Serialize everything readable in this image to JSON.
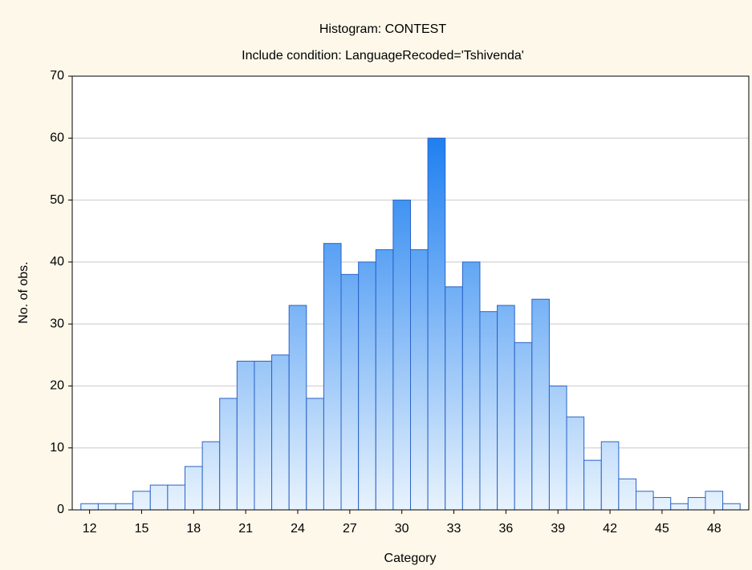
{
  "chart_data": {
    "type": "histogram",
    "title": "Histogram: CONTEST",
    "subtitle": "Include condition: LanguageRecoded='Tshivenda'",
    "x_label": "Category",
    "y_label": "No. of obs.",
    "bins": [
      11.5,
      12.5,
      13.5,
      14.5,
      15.5,
      16.5,
      17.5,
      18.5,
      19.5,
      20.5,
      21.5,
      22.5,
      23.5,
      24.5,
      25.5,
      26.5,
      27.5,
      28.5,
      29.5,
      30.5,
      31.5,
      32.5,
      33.5,
      34.5,
      35.5,
      36.5,
      37.5,
      38.5,
      39.5,
      40.5,
      41.5,
      42.5,
      43.5,
      44.5,
      45.5,
      46.5,
      47.5,
      48.5,
      49.5
    ],
    "values": [
      1,
      1,
      1,
      3,
      4,
      4,
      7,
      11,
      18,
      24,
      24,
      25,
      33,
      18,
      43,
      38,
      40,
      42,
      50,
      42,
      60,
      36,
      40,
      32,
      33,
      27,
      34,
      20,
      15,
      8,
      11,
      5,
      3,
      2,
      1,
      2,
      3,
      1
    ],
    "color": "#2a63c7",
    "xlim": [
      11,
      50
    ],
    "xticks": [
      12,
      15,
      18,
      21,
      24,
      27,
      30,
      33,
      36,
      39,
      42,
      45,
      48
    ],
    "ylim": [
      0,
      70
    ],
    "yticks": [
      0,
      10,
      20,
      30,
      40,
      50,
      60,
      70
    ],
    "grid": true
  }
}
